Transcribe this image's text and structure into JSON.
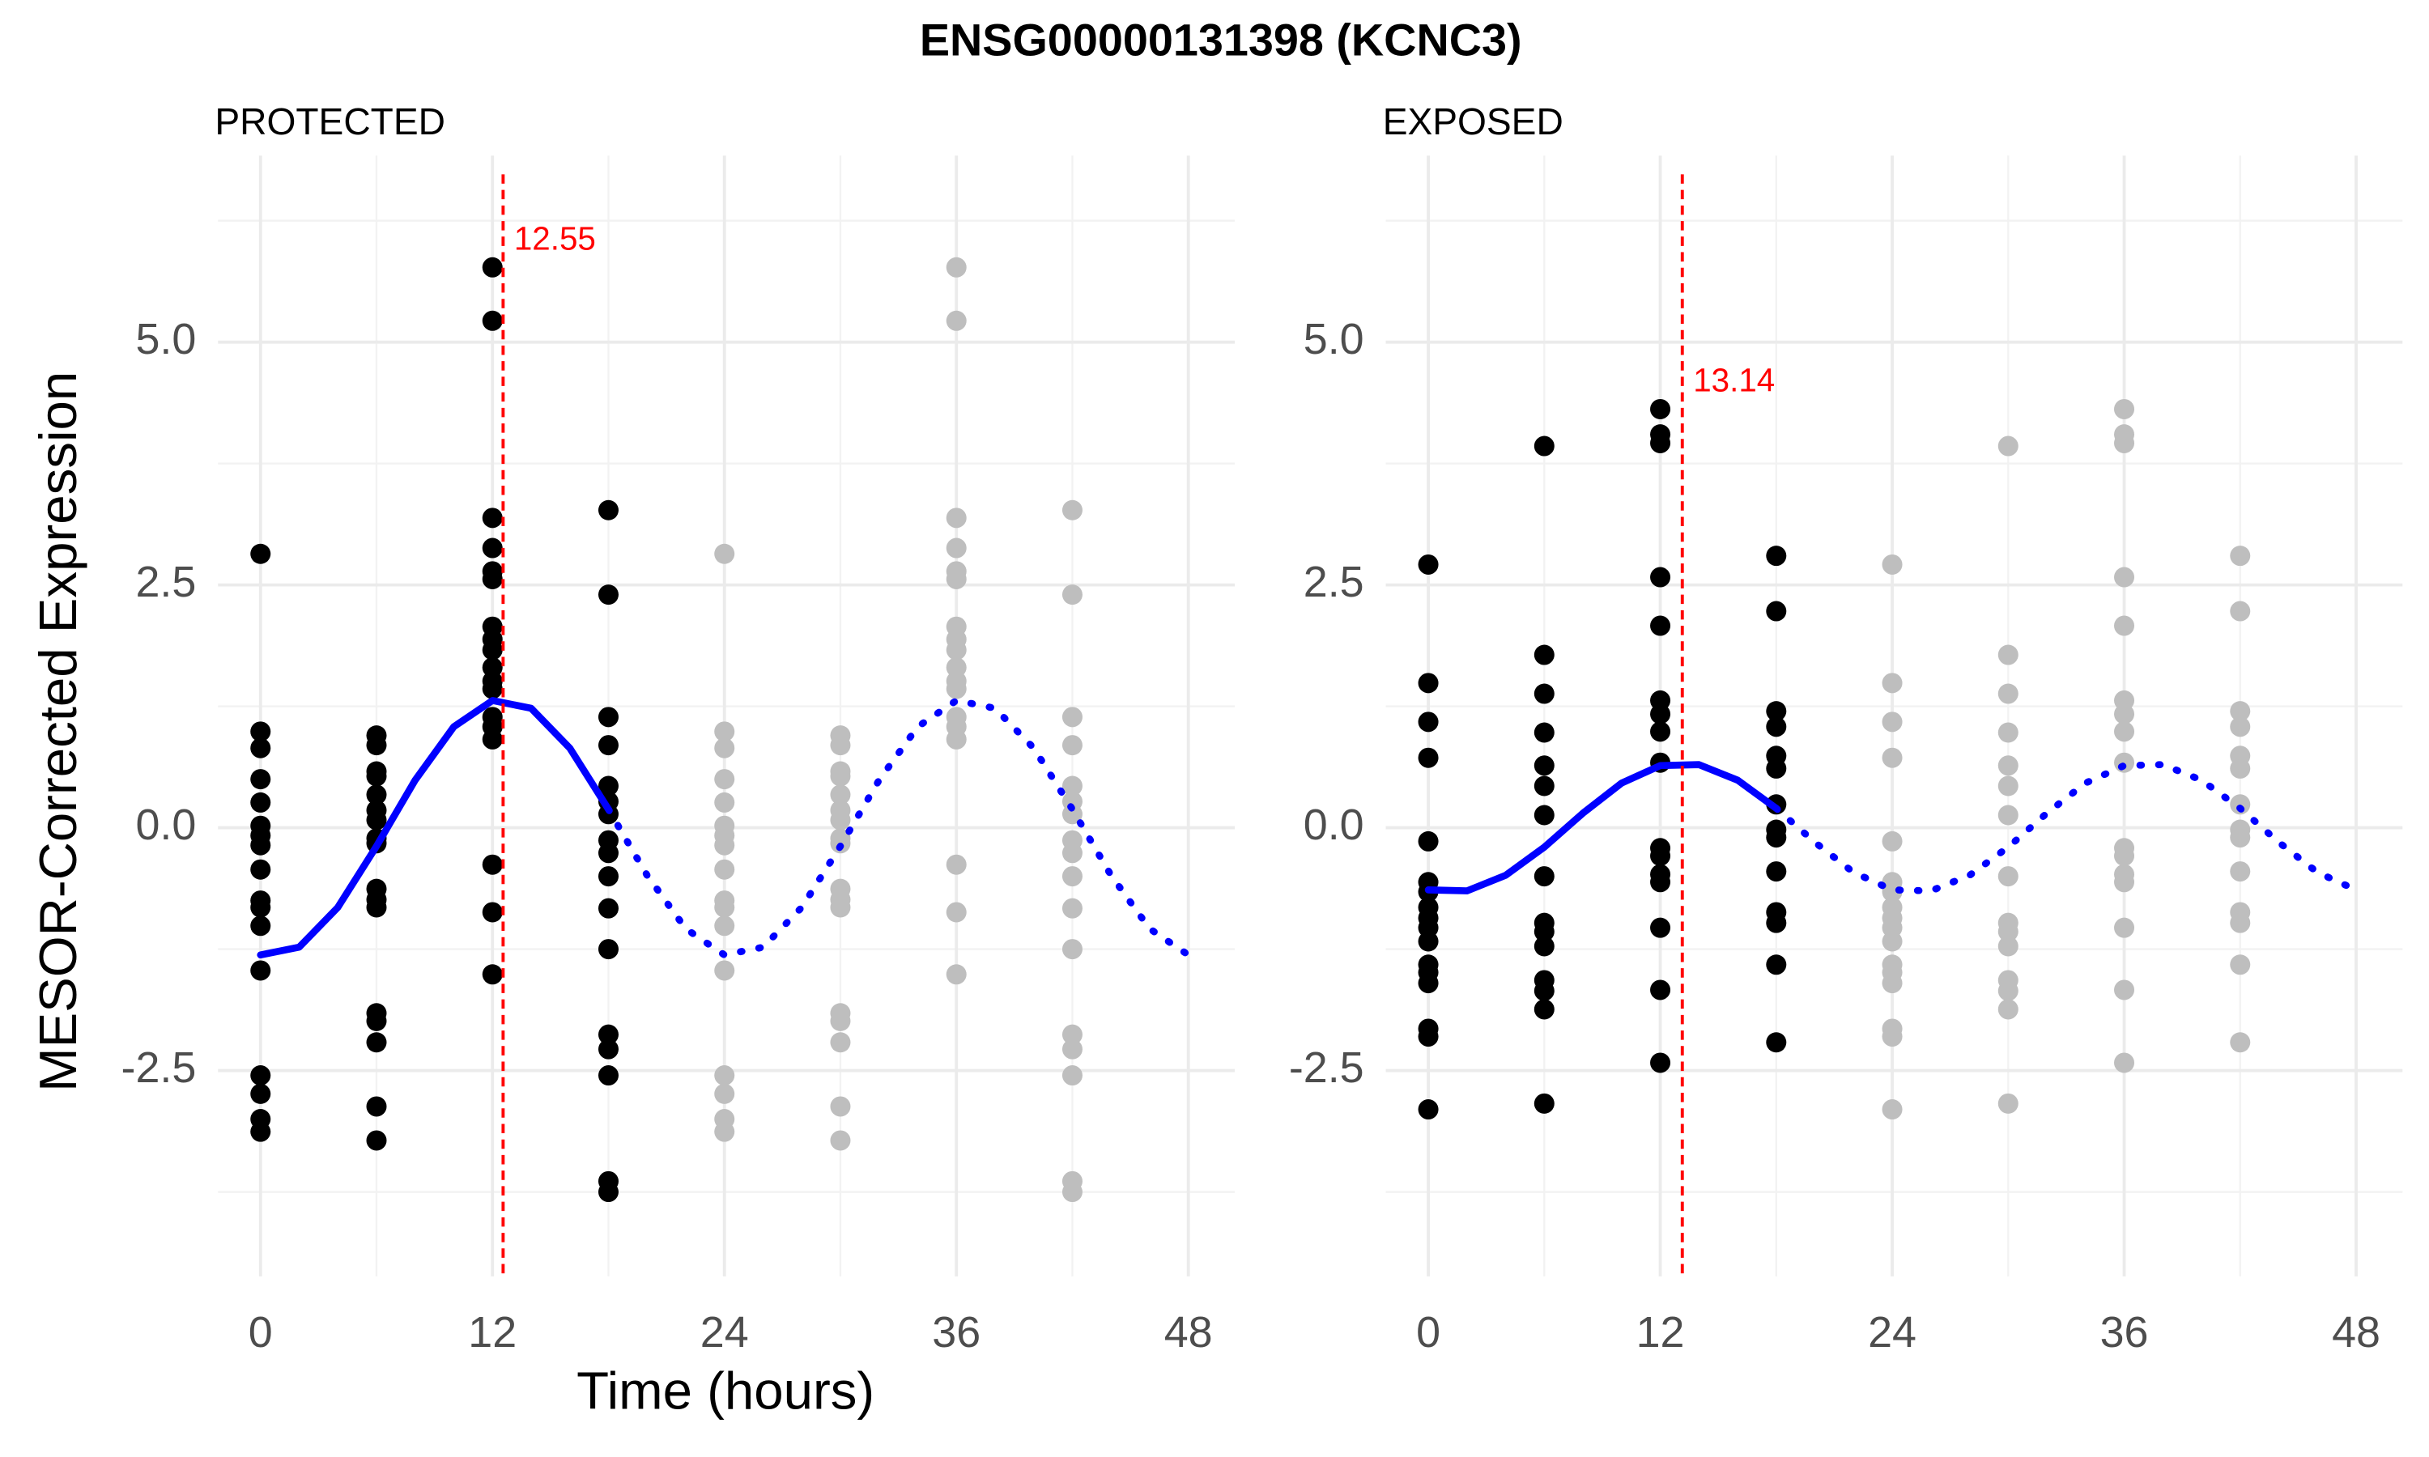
{
  "title": "ENSG00000131398 (KCNC3)",
  "xlabel": "Time (hours)",
  "ylabel": "MESOR-Corrected Expression",
  "chart_data": [
    {
      "type": "scatter",
      "panel_title": "PROTECTED",
      "xlim": [
        -2.2,
        50.4
      ],
      "ylim": [
        -4.62,
        6.92
      ],
      "xticks": [
        0,
        12,
        24,
        36,
        48
      ],
      "xminor": [
        6,
        18,
        30,
        42
      ],
      "yticks": [
        {
          "value": -2.5,
          "label": "-2.5"
        },
        {
          "value": 0,
          "label": "0.0"
        },
        {
          "value": 2.5,
          "label": "2.5"
        },
        {
          "value": 5,
          "label": "5.0"
        }
      ],
      "yminor": [
        -3.75,
        -1.25,
        1.25,
        3.75,
        6.25
      ],
      "grid": true,
      "peak": 12.55,
      "peak_color": "#ff0000",
      "series": [
        {
          "color": "#000000",
          "x": [
            0,
            0,
            0,
            0,
            0,
            0,
            0,
            0,
            0,
            0,
            0,
            0,
            0,
            0,
            0,
            0,
            0,
            6,
            6,
            6,
            6,
            6,
            6,
            6,
            6,
            6,
            6,
            6,
            6,
            6,
            6,
            6,
            6,
            6,
            12,
            12,
            12,
            12,
            12,
            12,
            12,
            12,
            12,
            12,
            12,
            12,
            12,
            12,
            12,
            12,
            12,
            12,
            18,
            18,
            18,
            18,
            18,
            18,
            18,
            18,
            18,
            18,
            18,
            18,
            18,
            18,
            18,
            18,
            18
          ],
          "values": [
            2.82,
            0.99,
            0.82,
            0.5,
            0.26,
            0.02,
            -0.08,
            -0.18,
            -0.43,
            -0.75,
            -0.82,
            -1.01,
            -1.47,
            -2.55,
            -2.74,
            -3.0,
            -3.13,
            0.95,
            0.85,
            0.58,
            0.53,
            0.34,
            0.18,
            0.08,
            -0.11,
            -0.16,
            -0.63,
            -0.74,
            -0.82,
            -1.91,
            -1.99,
            -2.21,
            -2.87,
            -3.22,
            5.77,
            5.22,
            3.19,
            2.88,
            2.64,
            2.56,
            2.07,
            1.94,
            1.83,
            1.65,
            1.51,
            1.43,
            1.14,
            1.04,
            0.91,
            -0.38,
            -0.87,
            -1.51,
            3.27,
            2.4,
            1.14,
            0.85,
            0.43,
            0.27,
            0.14,
            -0.13,
            -0.26,
            -0.5,
            -0.83,
            -1.25,
            -2.13,
            -2.28,
            -2.55,
            -3.64,
            -3.75
          ]
        },
        {
          "color": "#bebebe",
          "x": [
            24,
            24,
            24,
            24,
            24,
            24,
            24,
            24,
            24,
            24,
            24,
            24,
            24,
            24,
            24,
            24,
            24,
            30,
            30,
            30,
            30,
            30,
            30,
            30,
            30,
            30,
            30,
            30,
            30,
            30,
            30,
            30,
            30,
            30,
            36,
            36,
            36,
            36,
            36,
            36,
            36,
            36,
            36,
            36,
            36,
            36,
            36,
            36,
            36,
            36,
            36,
            36,
            42,
            42,
            42,
            42,
            42,
            42,
            42,
            42,
            42,
            42,
            42,
            42,
            42,
            42,
            42,
            42,
            42
          ],
          "values": [
            2.82,
            0.99,
            0.82,
            0.5,
            0.26,
            0.02,
            -0.08,
            -0.18,
            -0.43,
            -0.75,
            -0.82,
            -1.01,
            -1.47,
            -2.55,
            -2.74,
            -3.0,
            -3.13,
            0.95,
            0.85,
            0.58,
            0.53,
            0.34,
            0.18,
            0.08,
            -0.11,
            -0.16,
            -0.63,
            -0.74,
            -0.82,
            -1.91,
            -1.99,
            -2.21,
            -2.87,
            -3.22,
            5.77,
            5.22,
            3.19,
            2.88,
            2.64,
            2.56,
            2.07,
            1.94,
            1.83,
            1.65,
            1.51,
            1.43,
            1.14,
            1.04,
            0.91,
            -0.38,
            -0.87,
            -1.51,
            3.27,
            2.4,
            1.14,
            0.85,
            0.43,
            0.27,
            0.14,
            -0.13,
            -0.26,
            -0.5,
            -0.83,
            -1.25,
            -2.13,
            -2.28,
            -2.55,
            -3.64,
            -3.75
          ]
        }
      ],
      "lines": [
        {
          "style": "solid",
          "color": "#0000ff",
          "x": [
            0,
            2,
            4,
            6,
            8,
            10,
            12,
            14,
            16,
            18
          ],
          "values": [
            -1.31,
            -1.23,
            -0.82,
            -0.19,
            0.49,
            1.04,
            1.31,
            1.23,
            0.82,
            0.19
          ]
        },
        {
          "style": "dotted",
          "color": "#0000ff",
          "x": [
            18,
            20,
            22,
            24,
            26,
            28,
            30,
            32,
            34,
            36,
            38,
            40,
            42,
            44,
            46,
            48
          ],
          "values": [
            0.19,
            -0.49,
            -1.04,
            -1.31,
            -1.23,
            -0.82,
            -0.19,
            0.49,
            1.04,
            1.31,
            1.23,
            0.82,
            0.19,
            -0.49,
            -1.04,
            -1.31
          ]
        }
      ]
    },
    {
      "type": "scatter",
      "panel_title": "EXPOSED",
      "xlim": [
        -2.2,
        50.4
      ],
      "ylim": [
        -4.62,
        6.92
      ],
      "xticks": [
        0,
        12,
        24,
        36,
        48
      ],
      "xminor": [
        6,
        18,
        30,
        42
      ],
      "yticks": [
        {
          "value": -2.5,
          "label": "-2.5"
        },
        {
          "value": 0,
          "label": "0.0"
        },
        {
          "value": 2.5,
          "label": "2.5"
        },
        {
          "value": 5,
          "label": "5.0"
        }
      ],
      "yminor": [
        -3.75,
        -1.25,
        1.25,
        3.75,
        6.25
      ],
      "grid": true,
      "peak": 13.14,
      "peak_color": "#ff0000",
      "series": [
        {
          "color": "#000000",
          "x": [
            0,
            0,
            0,
            0,
            0,
            0,
            0,
            0,
            0,
            0,
            0,
            0,
            0,
            0,
            0,
            0,
            0,
            6,
            6,
            6,
            6,
            6,
            6,
            6,
            6,
            6,
            6,
            6,
            6,
            6,
            6,
            6,
            12,
            12,
            12,
            12,
            12,
            12,
            12,
            12,
            12,
            12,
            12,
            12,
            12,
            12,
            12,
            12,
            18,
            18,
            18,
            18,
            18,
            18,
            18,
            18,
            18,
            18,
            18,
            18,
            18,
            18
          ],
          "values": [
            2.71,
            1.49,
            1.09,
            0.72,
            -0.14,
            -0.56,
            -0.66,
            -0.82,
            -0.93,
            -1.03,
            -1.17,
            -1.41,
            -1.49,
            -1.6,
            -2.07,
            -2.15,
            -2.9,
            3.93,
            1.78,
            1.38,
            0.98,
            0.64,
            0.43,
            0.13,
            -0.5,
            -0.98,
            -1.07,
            -1.22,
            -1.57,
            -1.68,
            -1.87,
            -2.84,
            4.31,
            4.05,
            3.96,
            2.58,
            2.08,
            1.31,
            1.17,
            0.99,
            0.67,
            -0.21,
            -0.29,
            -0.48,
            -0.56,
            -1.03,
            -1.67,
            -2.42,
            2.8,
            2.23,
            1.2,
            1.04,
            0.74,
            0.61,
            0.24,
            -0.02,
            -0.1,
            -0.45,
            -0.87,
            -0.98,
            -1.41,
            -2.21
          ]
        },
        {
          "color": "#bebebe",
          "x": [
            24,
            24,
            24,
            24,
            24,
            24,
            24,
            24,
            24,
            24,
            24,
            24,
            24,
            24,
            24,
            24,
            24,
            30,
            30,
            30,
            30,
            30,
            30,
            30,
            30,
            30,
            30,
            30,
            30,
            30,
            30,
            30,
            36,
            36,
            36,
            36,
            36,
            36,
            36,
            36,
            36,
            36,
            36,
            36,
            36,
            36,
            36,
            36,
            42,
            42,
            42,
            42,
            42,
            42,
            42,
            42,
            42,
            42,
            42,
            42,
            42,
            42
          ],
          "values": [
            2.71,
            1.49,
            1.09,
            0.72,
            -0.14,
            -0.56,
            -0.66,
            -0.82,
            -0.93,
            -1.03,
            -1.17,
            -1.41,
            -1.49,
            -1.6,
            -2.07,
            -2.15,
            -2.9,
            3.93,
            1.78,
            1.38,
            0.98,
            0.64,
            0.43,
            0.13,
            -0.5,
            -0.98,
            -1.07,
            -1.22,
            -1.57,
            -1.68,
            -1.87,
            -2.84,
            4.31,
            4.05,
            3.96,
            2.58,
            2.08,
            1.31,
            1.17,
            0.99,
            0.67,
            -0.21,
            -0.29,
            -0.48,
            -0.56,
            -1.03,
            -1.67,
            -2.42,
            2.8,
            2.23,
            1.2,
            1.04,
            0.74,
            0.61,
            0.24,
            -0.02,
            -0.1,
            -0.45,
            -0.87,
            -0.98,
            -1.41,
            -2.21
          ]
        }
      ],
      "lines": [
        {
          "style": "solid",
          "color": "#0000ff",
          "x": [
            0,
            2,
            4,
            6,
            8,
            10,
            12,
            14,
            16,
            18
          ],
          "values": [
            -0.64,
            -0.65,
            -0.49,
            -0.2,
            0.15,
            0.46,
            0.64,
            0.65,
            0.49,
            0.2
          ]
        },
        {
          "style": "dotted",
          "color": "#0000ff",
          "x": [
            18,
            20,
            22,
            24,
            26,
            28,
            30,
            32,
            34,
            36,
            38,
            40,
            42,
            44,
            46,
            48
          ],
          "values": [
            0.2,
            -0.15,
            -0.46,
            -0.64,
            -0.65,
            -0.49,
            -0.2,
            0.15,
            0.46,
            0.64,
            0.65,
            0.49,
            0.2,
            -0.15,
            -0.46,
            -0.64
          ]
        }
      ]
    }
  ]
}
